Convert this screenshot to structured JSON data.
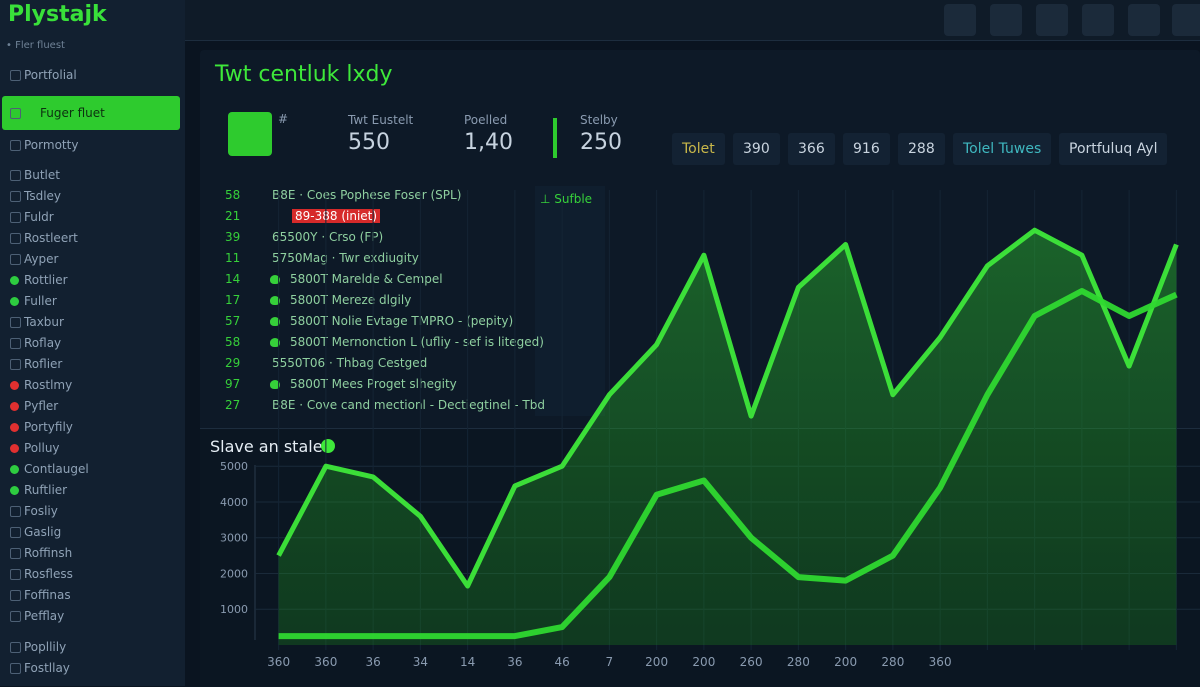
{
  "brand": "Plystajk",
  "sidebar": {
    "section": "• Fler fluest",
    "items": [
      {
        "label": "Portfolial",
        "y": 68
      },
      {
        "label": "Fuger fluet",
        "y": 106,
        "selected": true
      },
      {
        "label": "Pormotty",
        "y": 138
      },
      {
        "label": "Butlet",
        "y": 168
      },
      {
        "label": "Tsdley",
        "y": 189
      },
      {
        "label": "Fuldr",
        "y": 210
      },
      {
        "label": "Rostleert",
        "y": 231
      },
      {
        "label": "Ayper",
        "y": 252
      },
      {
        "label": "Rottlier",
        "y": 273,
        "dot": "#2ecc40"
      },
      {
        "label": "Fuller",
        "y": 294,
        "dot": "#2ecc40"
      },
      {
        "label": "Taxbur",
        "y": 315
      },
      {
        "label": "Roflay",
        "y": 336
      },
      {
        "label": "Roflier",
        "y": 357
      },
      {
        "label": "Rostlmy",
        "y": 378,
        "dot": "#e03030"
      },
      {
        "label": "Pyfler",
        "y": 399,
        "dot": "#e03030"
      },
      {
        "label": "Portyfily",
        "y": 420,
        "dot": "#e03030"
      },
      {
        "label": "Polluy",
        "y": 441,
        "dot": "#e03030"
      },
      {
        "label": "Contlaugel",
        "y": 462,
        "dot": "#2ecc40"
      },
      {
        "label": "Ruftlier",
        "y": 483,
        "dot": "#2ecc40"
      },
      {
        "label": "Fosliy",
        "y": 504
      },
      {
        "label": "Gaslig",
        "y": 525
      },
      {
        "label": "Roffinsh",
        "y": 546
      },
      {
        "label": "Rosfless",
        "y": 567
      },
      {
        "label": "Foffinas",
        "y": 588
      },
      {
        "label": "Pefflay",
        "y": 609
      },
      {
        "label": "Popllily",
        "y": 640
      },
      {
        "label": "Fostllay",
        "y": 661
      }
    ]
  },
  "header": {
    "title": "Twt centluk lxdy",
    "avatar_note": "#"
  },
  "stats": [
    {
      "label": "Twt Eustelt",
      "value": "550"
    },
    {
      "label": "Poelled",
      "value": "1,40"
    },
    {
      "label": "Stelby",
      "value": "250"
    }
  ],
  "chips": [
    "Tolet",
    "390",
    "366",
    "916",
    "288",
    "Tolel Tuwes",
    "Portfuluq Ayl"
  ],
  "list": {
    "badge": "⊥ Sufble",
    "rows": [
      {
        "num": "58",
        "text": "B8E · Coes Pophese Foser (SPL)"
      },
      {
        "num": "21",
        "text": "89-388 (iniet)",
        "alert": true
      },
      {
        "num": "39",
        "text": "65500Y · Crso (FP)"
      },
      {
        "num": "11",
        "text": "5750Mag · Twr exdiugity"
      },
      {
        "num": "14",
        "text": "5800T Marelde & Cempel",
        "icon": true
      },
      {
        "num": "17",
        "text": "5800T Mereze dlgily",
        "icon": true
      },
      {
        "num": "57",
        "text": "5800T Nolie Evtage TMPRO - (pepity)",
        "icon": true
      },
      {
        "num": "58",
        "text": "5800T Mernonction L (ufliy - sef is liteged)",
        "icon": true
      },
      {
        "num": "29",
        "text": "5550T06 · Thbag Cestged"
      },
      {
        "num": "97",
        "text": "5800T Mees Proget slhegity",
        "icon": true
      },
      {
        "num": "27",
        "text": "B8E · Cove cand mectionl - Dectiegtinel - Tbd"
      }
    ]
  },
  "chart_data": {
    "type": "area",
    "title": "Slave an stale",
    "categories": [
      "360",
      "360",
      "36",
      "34",
      "14",
      "36",
      "46",
      "7",
      "200",
      "200",
      "260",
      "280",
      "200",
      "280",
      "360",
      null,
      null,
      null,
      null,
      null
    ],
    "series": [
      {
        "color": "#3ee83a",
        "values": [
          2500,
          5000,
          4700,
          3600,
          1650,
          4450,
          5000,
          7000,
          8400,
          10900,
          6400,
          10000,
          11200,
          7000,
          8600,
          10600,
          11600,
          10900,
          7800,
          11200
        ]
      },
      {
        "color": "#2fd830",
        "values": [
          250,
          250,
          250,
          250,
          250,
          250,
          500,
          1900,
          4200,
          4600,
          3000,
          1900,
          1800,
          2500,
          4400,
          7000,
          9200,
          9900,
          9200,
          9800
        ]
      }
    ],
    "ylim": [
      0,
      12500
    ],
    "yticks": [
      1000,
      2000,
      3000,
      4000,
      5000
    ],
    "grid": true
  }
}
